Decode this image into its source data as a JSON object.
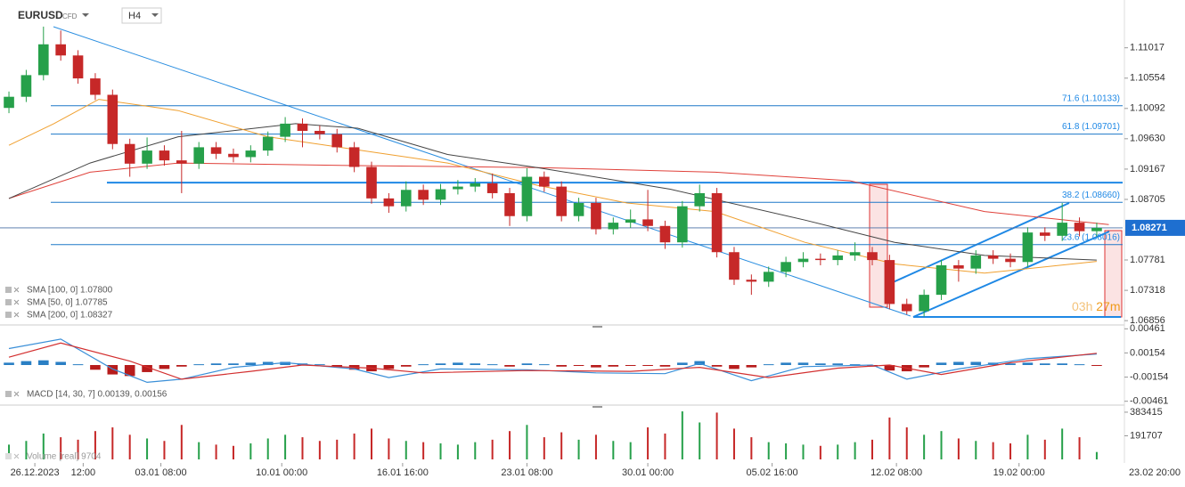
{
  "header": {
    "symbol": "EURUSD",
    "symbol_type": "CFD",
    "timeframe": "H4"
  },
  "chart_data": [
    {
      "type": "candlestick",
      "up_color": "#26a04a",
      "down_color": "#c62828",
      "xlim": [
        -0.26,
        64.5
      ],
      "xticks": [
        {
          "value": 1.5,
          "label": "26.12.2023"
        },
        {
          "value": 4.3,
          "label": "12:00"
        },
        {
          "value": 8.8,
          "label": "03.01  08:00"
        },
        {
          "value": 15.8,
          "label": "10.01  00:00"
        },
        {
          "value": 22.8,
          "label": "16.01  16:00"
        },
        {
          "value": 30,
          "label": "23.01  08:00"
        },
        {
          "value": 37,
          "label": "30.01  00:00"
        },
        {
          "value": 44.2,
          "label": "05.02  16:00"
        },
        {
          "value": 51.4,
          "label": "12.02  08:00"
        },
        {
          "value": 58.5,
          "label": "19.02  00:00"
        }
      ],
      "x_end_label": "23.02  20:00",
      "ylim": [
        1.0679,
        1.1161
      ],
      "yticks": [
        1.11017,
        1.10554,
        1.10092,
        {
          "value": 1.0963,
          "label": "1.09630"
        },
        1.09167,
        1.08705,
        1.07781,
        1.07318,
        1.06856
      ],
      "current_price": 1.08271,
      "levels": [
        {
          "value": 1.10133,
          "label": "71.6 (1.10133)"
        },
        {
          "value": 1.09701,
          "label": "61.8 (1.09701)"
        },
        {
          "value": 1.0866,
          "label": "38.2 (1.08660)"
        },
        {
          "value": 1.08016,
          "label": "23.6 (1.08016)"
        }
      ],
      "support_level": 1.0896,
      "countdown": [
        "03h",
        "27m"
      ],
      "ohlc": [
        [
          1.101,
          1.1035,
          1.1002,
          1.1027
        ],
        [
          1.1027,
          1.1068,
          1.1019,
          1.106
        ],
        [
          1.106,
          1.1134,
          1.1052,
          1.1107
        ],
        [
          1.1107,
          1.1128,
          1.1082,
          1.109
        ],
        [
          1.109,
          1.1098,
          1.1047,
          1.1055
        ],
        [
          1.1055,
          1.1063,
          1.1022,
          1.103
        ],
        [
          1.103,
          1.1038,
          1.0947,
          1.0955
        ],
        [
          1.0955,
          1.0963,
          1.0905,
          1.0925
        ],
        [
          1.0925,
          1.0965,
          1.0917,
          1.0945
        ],
        [
          1.0945,
          1.0953,
          1.0922,
          1.093
        ],
        [
          1.093,
          1.0975,
          1.088,
          1.0925
        ],
        [
          1.0925,
          1.0958,
          1.0917,
          1.095
        ],
        [
          1.095,
          1.0958,
          1.0932,
          1.094
        ],
        [
          1.094,
          1.0948,
          1.0927,
          1.0935
        ],
        [
          1.0935,
          1.0953,
          1.0927,
          1.0945
        ],
        [
          1.0945,
          1.0974,
          1.0937,
          1.0966
        ],
        [
          1.0966,
          1.0996,
          1.0958,
          1.0986
        ],
        [
          1.0986,
          1.0994,
          1.095,
          1.0975
        ],
        [
          1.0975,
          1.0983,
          1.0962,
          1.097
        ],
        [
          1.097,
          1.0978,
          1.0942,
          1.095
        ],
        [
          1.095,
          1.0958,
          1.0912,
          1.092
        ],
        [
          1.092,
          1.0928,
          1.0864,
          1.0872
        ],
        [
          1.0872,
          1.088,
          1.085,
          1.086
        ],
        [
          1.086,
          1.0898,
          1.0852,
          1.0885
        ],
        [
          1.0885,
          1.0893,
          1.0862,
          1.087
        ],
        [
          1.087,
          1.0894,
          1.0862,
          1.0886
        ],
        [
          1.0886,
          1.09,
          1.0878,
          1.089
        ],
        [
          1.089,
          1.0903,
          1.0882,
          1.0895
        ],
        [
          1.0895,
          1.091,
          1.0872,
          1.088
        ],
        [
          1.088,
          1.0888,
          1.083,
          1.0845
        ],
        [
          1.0845,
          1.0918,
          1.0837,
          1.0905
        ],
        [
          1.0905,
          1.0913,
          1.0882,
          1.089
        ],
        [
          1.089,
          1.0898,
          1.0837,
          1.0845
        ],
        [
          1.0845,
          1.0873,
          1.0837,
          1.0865
        ],
        [
          1.0865,
          1.0873,
          1.0817,
          1.0825
        ],
        [
          1.0825,
          1.0843,
          1.0817,
          1.0835
        ],
        [
          1.0835,
          1.0855,
          1.0827,
          1.084
        ],
        [
          1.084,
          1.0885,
          1.0822,
          1.083
        ],
        [
          1.083,
          1.0838,
          1.0795,
          1.0805
        ],
        [
          1.0805,
          1.0868,
          1.0797,
          1.086
        ],
        [
          1.086,
          1.0893,
          1.0852,
          1.088
        ],
        [
          1.088,
          1.0888,
          1.0782,
          1.079
        ],
        [
          1.079,
          1.0798,
          1.074,
          1.0748
        ],
        [
          1.0748,
          1.0756,
          1.0725,
          1.0745
        ],
        [
          1.0745,
          1.0768,
          1.0737,
          1.076
        ],
        [
          1.076,
          1.0783,
          1.0752,
          1.0775
        ],
        [
          1.0775,
          1.079,
          1.0767,
          1.078
        ],
        [
          1.078,
          1.0788,
          1.077,
          1.0778
        ],
        [
          1.0778,
          1.0793,
          1.077,
          1.0785
        ],
        [
          1.0785,
          1.0805,
          1.0777,
          1.079
        ],
        [
          1.079,
          1.0798,
          1.077,
          1.0778
        ],
        [
          1.0778,
          1.0786,
          1.0703,
          1.0711
        ],
        [
          1.0711,
          1.0719,
          1.0695,
          1.07
        ],
        [
          1.07,
          1.0733,
          1.0692,
          1.0725
        ],
        [
          1.0725,
          1.0778,
          1.0717,
          1.077
        ],
        [
          1.077,
          1.0778,
          1.0745,
          1.0765
        ],
        [
          1.0765,
          1.0793,
          1.0757,
          1.0785
        ],
        [
          1.0785,
          1.0793,
          1.0772,
          1.078
        ],
        [
          1.078,
          1.0788,
          1.0767,
          1.0775
        ],
        [
          1.0775,
          1.0828,
          1.0767,
          1.082
        ],
        [
          1.082,
          1.0828,
          1.0807,
          1.0815
        ],
        [
          1.0815,
          1.0865,
          1.0807,
          1.0835
        ],
        [
          1.0835,
          1.0843,
          1.0814,
          1.0822
        ],
        [
          1.0822,
          1.0835,
          1.0814,
          1.0827
        ]
      ],
      "sma": [
        {
          "name": "SMA [200, 0]",
          "color": "#e0413a",
          "x": [
            0,
            4.7,
            9.8,
            20.2,
            30.6,
            40.9,
            48.7,
            56.5,
            63.7
          ],
          "values": [
            1.0872,
            1.0912,
            1.0926,
            1.0922,
            1.0919,
            1.0912,
            1.0899,
            1.0852,
            1.0832
          ]
        },
        {
          "name": "SMA [100, 0]",
          "color": "#444444",
          "x": [
            0,
            4.7,
            9.8,
            16.6,
            20.2,
            25.4,
            30.6,
            38.3,
            46.1,
            51.3,
            56.5,
            63
          ],
          "values": [
            1.0872,
            1.0926,
            1.0966,
            1.0986,
            1.0979,
            1.0939,
            1.0919,
            1.0886,
            1.0839,
            1.0805,
            1.0785,
            1.0778
          ]
        },
        {
          "name": "SMA [50, 0]",
          "color": "#f0a030",
          "x": [
            0,
            2.6,
            5.2,
            9.8,
            15,
            20.2,
            25.4,
            30.6,
            35.8,
            40.9,
            46.1,
            51.3,
            56.5,
            63
          ],
          "values": [
            1.0953,
            1.0986,
            1.1023,
            1.1006,
            1.0966,
            1.0946,
            1.0926,
            1.0892,
            1.0865,
            1.0852,
            1.0805,
            1.0772,
            1.0758,
            1.0776
          ]
        }
      ],
      "legend": [
        "SMA [100, 0]  1.07800",
        "SMA [50, 0]  1.07785",
        "SMA [200, 0]  1.08327"
      ]
    },
    {
      "type": "macd",
      "ylim": [
        -0.0051,
        0.0051
      ],
      "yticks": [
        0.00461,
        0.00154,
        -0.00154,
        -0.00461
      ],
      "histogram": [
        0.0003,
        0.0005,
        0.0006,
        0.0004,
        0.0001,
        -0.0006,
        -0.0012,
        -0.0014,
        -0.0009,
        -0.0005,
        -0.0002,
        0.0001,
        0.0002,
        0.0002,
        0.0003,
        0.0004,
        0.0004,
        0.0002,
        0.0001,
        -0.0002,
        -0.0006,
        -0.0008,
        -0.0005,
        -0.0002,
        0.0001,
        0.0002,
        0.0003,
        0.0002,
        0.0001,
        -0.0002,
        0.0002,
        0.0001,
        -0.0002,
        -0.0001,
        -0.0003,
        -0.0002,
        -0.0001,
        -0.0001,
        -0.0002,
        0.0003,
        0.0005,
        -0.0002,
        -0.0005,
        -0.0003,
        0.0001,
        0.0003,
        0.0003,
        0.0002,
        0.0002,
        0.0001,
        -0.0002,
        -0.0007,
        -0.0008,
        -0.0003,
        0.0003,
        0.0004,
        0.0004,
        0.0003,
        0.0002,
        0.0003,
        0.0002,
        0.0002,
        0.0001,
        -0.0001
      ],
      "up_color": "#2a7fc4",
      "down_color": "#b71c1c",
      "macd": {
        "color": "#3a8fd8",
        "x": [
          0,
          3,
          6,
          8,
          10,
          13,
          16,
          20,
          22,
          25,
          30,
          34,
          38,
          40,
          43,
          46,
          50,
          52,
          55,
          59,
          63
        ],
        "values": [
          0.0021,
          0.0033,
          -0.0005,
          -0.0022,
          -0.0018,
          -0.0003,
          0.0003,
          -0.0005,
          -0.0016,
          -0.0005,
          -0.0006,
          -0.001,
          -0.0011,
          0.0002,
          -0.002,
          -0.0002,
          0.0,
          -0.0018,
          -0.0005,
          0.0008,
          0.0014
        ]
      },
      "signal": {
        "color": "#d32f2f",
        "x": [
          0,
          3,
          7,
          10,
          14,
          17,
          21,
          24,
          30,
          36,
          40,
          44,
          48,
          51,
          54,
          58,
          63
        ],
        "values": [
          0.001,
          0.0028,
          0.0005,
          -0.0018,
          -0.0008,
          0.0,
          -0.0004,
          -0.001,
          -0.0007,
          -0.0008,
          -0.0003,
          -0.0016,
          -0.0004,
          0.0,
          -0.0012,
          0.0003,
          0.0015
        ]
      },
      "legend": "MACD [14, 30, 7]  0.00139,  0.00156"
    },
    {
      "type": "volume",
      "ylim": [
        0,
        441000
      ],
      "yticks": [
        383415,
        191707
      ],
      "values": [
        120000,
        150000,
        210000,
        180000,
        160000,
        230000,
        260000,
        200000,
        170000,
        150000,
        280000,
        140000,
        120000,
        110000,
        130000,
        170000,
        200000,
        180000,
        150000,
        160000,
        210000,
        250000,
        170000,
        150000,
        140000,
        130000,
        120000,
        140000,
        160000,
        230000,
        280000,
        180000,
        220000,
        160000,
        200000,
        150000,
        140000,
        260000,
        210000,
        390000,
        300000,
        380000,
        250000,
        180000,
        140000,
        130000,
        120000,
        110000,
        120000,
        140000,
        160000,
        340000,
        260000,
        200000,
        230000,
        170000,
        150000,
        140000,
        130000,
        200000,
        160000,
        250000,
        180000,
        60000
      ],
      "legend": "Volume [real]  9704"
    }
  ]
}
